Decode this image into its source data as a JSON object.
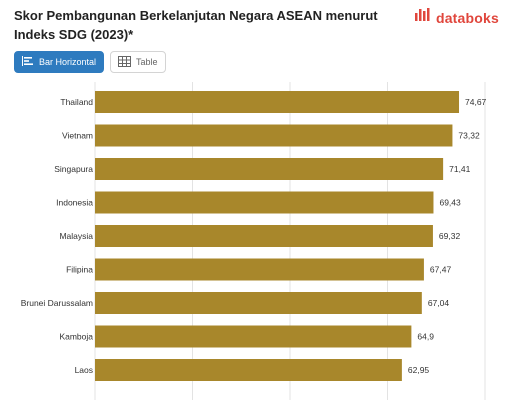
{
  "title": "Skor Pembangunan Berkelanjutan Negara ASEAN menurut Indeks SDG (2023)*",
  "brand": {
    "name": "databoks",
    "color": "#e0463c",
    "icon": "databoks-logo-icon"
  },
  "toolbar": {
    "bar_label": "Bar Horizontal",
    "table_label": "Table",
    "bar_icon": "bar-chart-icon",
    "table_icon": "table-grid-icon"
  },
  "colors": {
    "bar": "#a8872b",
    "accent": "#2e7bbf",
    "grid": "#e3e3e3"
  },
  "chart_data": {
    "type": "bar",
    "orientation": "horizontal",
    "categories": [
      "Thailand",
      "Vietnam",
      "Singapura",
      "Indonesia",
      "Malaysia",
      "Filipina",
      "Brunei Darussalam",
      "Kamboja",
      "Laos"
    ],
    "values": [
      74.67,
      73.32,
      71.41,
      69.43,
      69.32,
      67.47,
      67.04,
      64.9,
      62.95
    ],
    "value_labels": [
      "74,67",
      "73,32",
      "71,41",
      "69,43",
      "69,32",
      "67,47",
      "67,04",
      "64,9",
      "62,95"
    ],
    "xlim": [
      0,
      80
    ],
    "grid": true,
    "title": "Skor Pembangunan Berkelanjutan Negara ASEAN menurut Indeks SDG (2023)*"
  }
}
